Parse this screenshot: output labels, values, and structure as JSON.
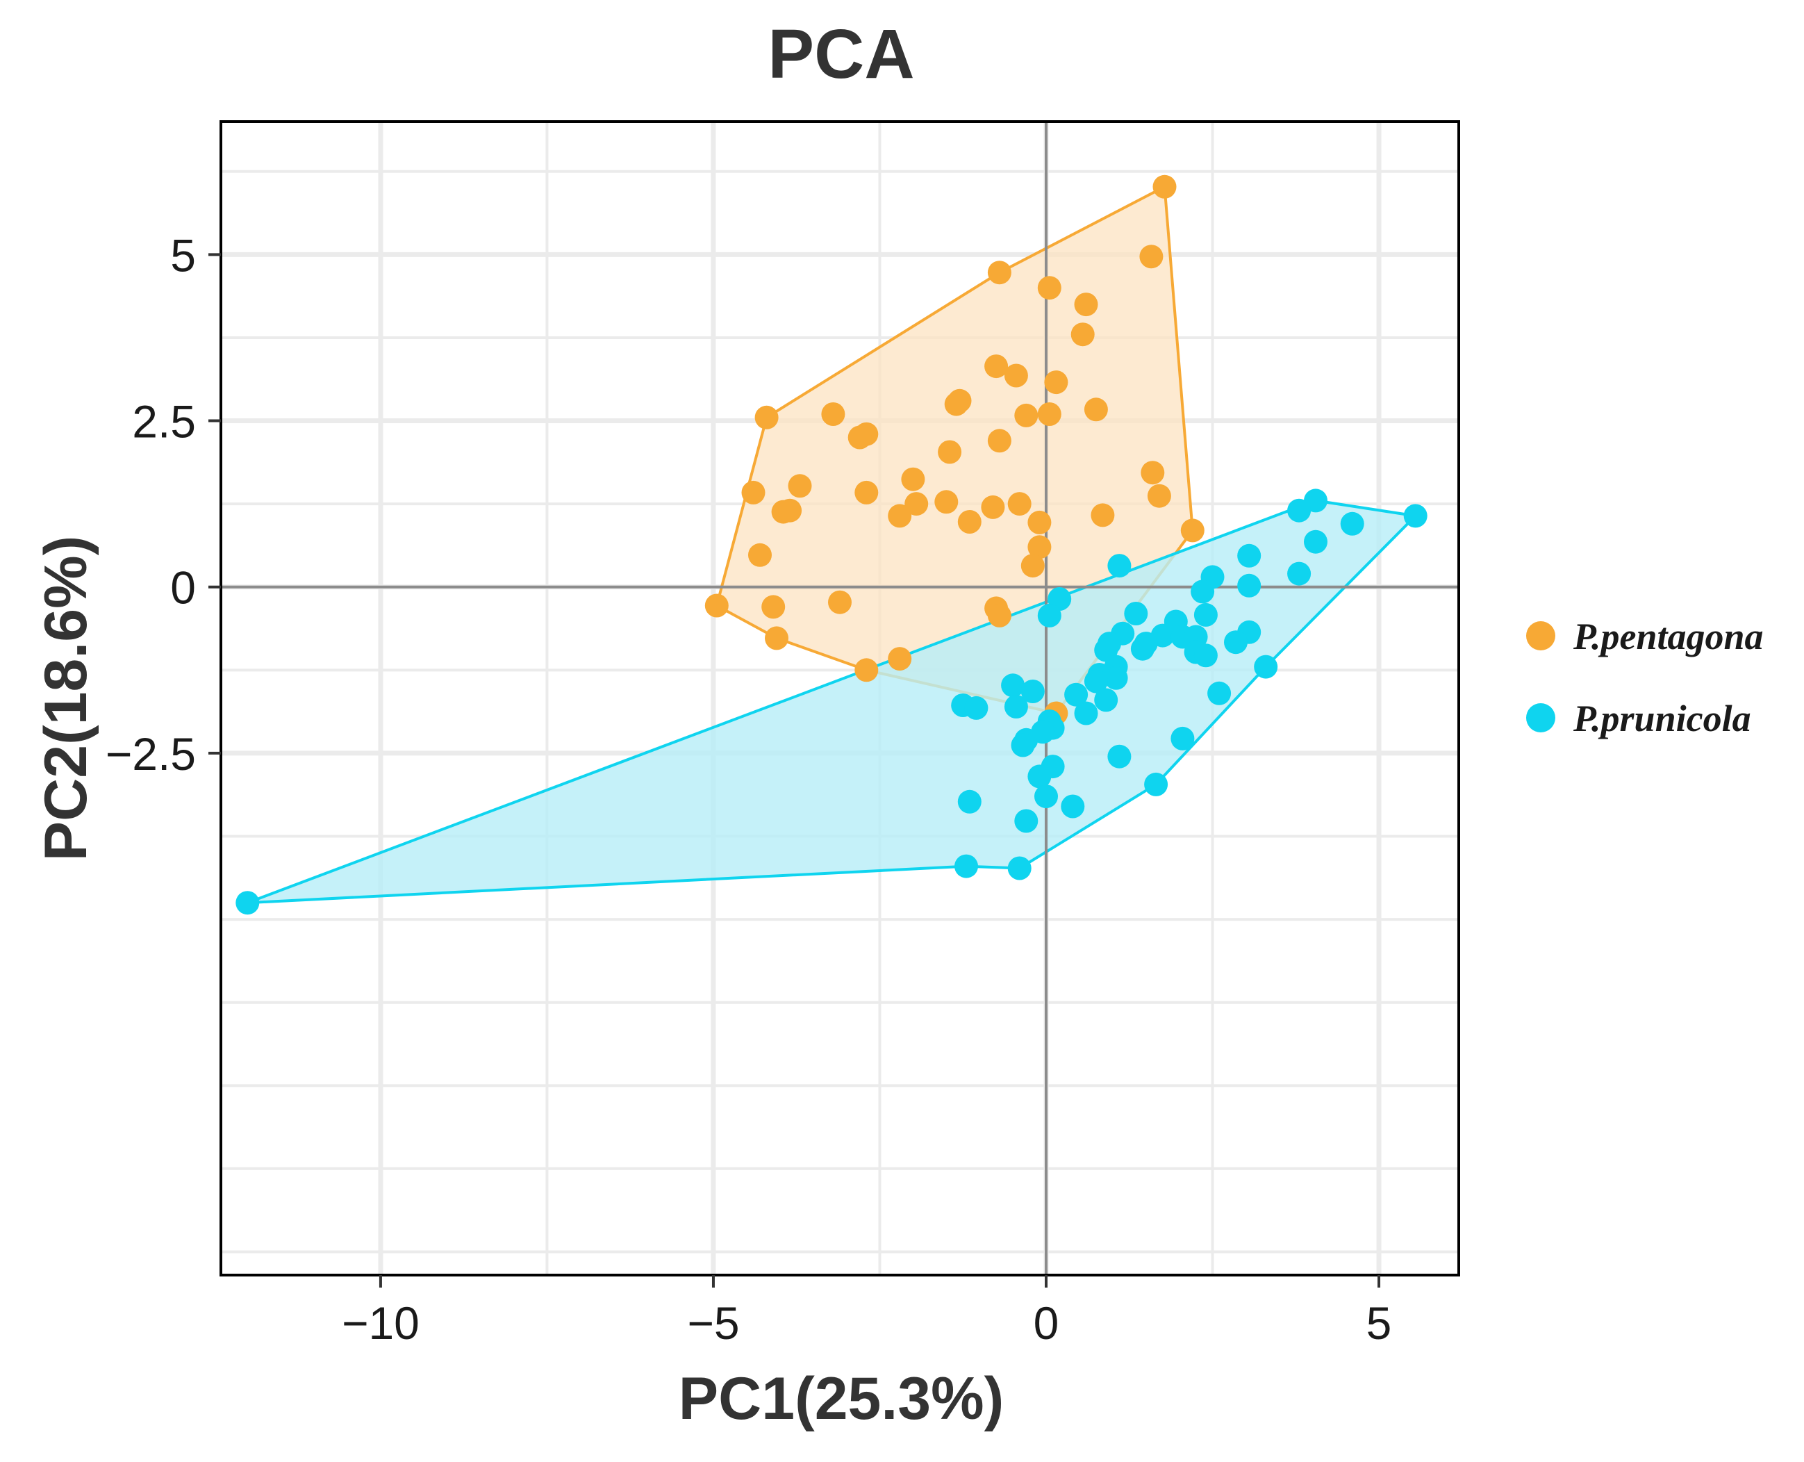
{
  "chart_data": {
    "type": "scatter",
    "title": "PCA",
    "xlabel": "PC1(25.3%)",
    "ylabel": "PC2(18.6%)",
    "xlim": [
      -12.4,
      6.2
    ],
    "ylim": [
      -10.35,
      7.0
    ],
    "x_ticks": [
      {
        "value": -10,
        "label": "−10"
      },
      {
        "value": -5,
        "label": "−5"
      },
      {
        "value": 0,
        "label": "0"
      },
      {
        "value": 5,
        "label": "5"
      }
    ],
    "y_ticks": [
      {
        "value": 5,
        "label": "5"
      },
      {
        "value": 2.5,
        "label": "2.5"
      },
      {
        "value": 0,
        "label": "0"
      },
      {
        "value": -2.5,
        "label": "−2.5"
      }
    ],
    "grid": true,
    "reference_lines": {
      "x": 0,
      "y": 0
    },
    "legend": {
      "position": "right"
    },
    "series": [
      {
        "name": "P.pentagona",
        "color": "#F7A935",
        "hull_fill": "#FCE3C2",
        "hull_opacity": 0.75,
        "points": [
          [
            1.78,
            6.02
          ],
          [
            1.58,
            4.97
          ],
          [
            -0.7,
            4.73
          ],
          [
            0.05,
            4.5
          ],
          [
            0.6,
            4.25
          ],
          [
            0.55,
            3.8
          ],
          [
            -0.75,
            3.32
          ],
          [
            -0.45,
            3.18
          ],
          [
            0.15,
            3.08
          ],
          [
            -1.3,
            2.8
          ],
          [
            -1.35,
            2.75
          ],
          [
            0.75,
            2.67
          ],
          [
            -0.3,
            2.58
          ],
          [
            0.05,
            2.6
          ],
          [
            -4.2,
            2.55
          ],
          [
            -3.2,
            2.6
          ],
          [
            -2.7,
            2.3
          ],
          [
            -2.8,
            2.25
          ],
          [
            -0.7,
            2.2
          ],
          [
            -1.45,
            2.03
          ],
          [
            1.6,
            1.72
          ],
          [
            -2.0,
            1.62
          ],
          [
            -3.7,
            1.52
          ],
          [
            -4.4,
            1.42
          ],
          [
            -2.7,
            1.42
          ],
          [
            1.7,
            1.37
          ],
          [
            -1.5,
            1.28
          ],
          [
            -1.95,
            1.25
          ],
          [
            -0.4,
            1.25
          ],
          [
            -0.8,
            1.2
          ],
          [
            -3.95,
            1.13
          ],
          [
            -3.85,
            1.15
          ],
          [
            -2.2,
            1.07
          ],
          [
            0.85,
            1.08
          ],
          [
            -1.15,
            0.98
          ],
          [
            -0.1,
            0.97
          ],
          [
            2.2,
            0.85
          ],
          [
            -0.1,
            0.6
          ],
          [
            -4.3,
            0.48
          ],
          [
            -0.2,
            0.32
          ],
          [
            -4.95,
            -0.28
          ],
          [
            -4.1,
            -0.3
          ],
          [
            -3.1,
            -0.23
          ],
          [
            -0.75,
            -0.32
          ],
          [
            -0.7,
            -0.43
          ],
          [
            -4.05,
            -0.77
          ],
          [
            -2.2,
            -1.08
          ],
          [
            -2.7,
            -1.25
          ],
          [
            0.15,
            -1.9
          ]
        ],
        "hull": [
          [
            1.78,
            6.02
          ],
          [
            2.2,
            0.85
          ],
          [
            0.15,
            -1.9
          ],
          [
            -2.7,
            -1.25
          ],
          [
            -4.05,
            -0.77
          ],
          [
            -4.95,
            -0.28
          ],
          [
            -4.2,
            2.55
          ],
          [
            -0.7,
            4.73
          ]
        ]
      },
      {
        "name": "P.prunicola",
        "color": "#0FD4EF",
        "hull_fill": "#B6EEF8",
        "hull_opacity": 0.8,
        "points": [
          [
            5.55,
            1.07
          ],
          [
            4.05,
            1.3
          ],
          [
            3.8,
            1.15
          ],
          [
            4.6,
            0.95
          ],
          [
            4.05,
            0.68
          ],
          [
            3.05,
            0.47
          ],
          [
            1.1,
            0.32
          ],
          [
            2.5,
            0.15
          ],
          [
            3.8,
            0.2
          ],
          [
            2.35,
            -0.07
          ],
          [
            3.05,
            0.02
          ],
          [
            0.2,
            -0.18
          ],
          [
            0.05,
            -0.43
          ],
          [
            1.35,
            -0.4
          ],
          [
            2.4,
            -0.42
          ],
          [
            1.95,
            -0.52
          ],
          [
            3.05,
            -0.68
          ],
          [
            1.15,
            -0.7
          ],
          [
            1.75,
            -0.73
          ],
          [
            2.05,
            -0.75
          ],
          [
            2.25,
            -0.75
          ],
          [
            2.85,
            -0.83
          ],
          [
            0.95,
            -0.85
          ],
          [
            1.5,
            -0.85
          ],
          [
            1.45,
            -0.93
          ],
          [
            0.9,
            -0.95
          ],
          [
            2.25,
            -0.98
          ],
          [
            2.4,
            -1.03
          ],
          [
            1.05,
            -1.2
          ],
          [
            3.3,
            -1.2
          ],
          [
            0.8,
            -1.32
          ],
          [
            1.05,
            -1.37
          ],
          [
            0.75,
            -1.42
          ],
          [
            -0.5,
            -1.48
          ],
          [
            -0.2,
            -1.57
          ],
          [
            0.45,
            -1.62
          ],
          [
            2.6,
            -1.6
          ],
          [
            0.9,
            -1.7
          ],
          [
            -1.25,
            -1.78
          ],
          [
            -1.05,
            -1.82
          ],
          [
            -0.45,
            -1.8
          ],
          [
            0.6,
            -1.9
          ],
          [
            0.05,
            -2.02
          ],
          [
            0.1,
            -2.12
          ],
          [
            -0.05,
            -2.18
          ],
          [
            2.05,
            -2.28
          ],
          [
            -0.3,
            -2.3
          ],
          [
            -0.35,
            -2.38
          ],
          [
            1.1,
            -2.55
          ],
          [
            0.1,
            -2.7
          ],
          [
            -0.1,
            -2.85
          ],
          [
            1.65,
            -2.97
          ],
          [
            0.0,
            -3.15
          ],
          [
            -1.15,
            -3.23
          ],
          [
            0.4,
            -3.3
          ],
          [
            -0.3,
            -3.52
          ],
          [
            -1.2,
            -4.2
          ],
          [
            -0.4,
            -4.23
          ],
          [
            -12.0,
            -4.75
          ]
        ],
        "hull": [
          [
            5.55,
            1.07
          ],
          [
            4.05,
            1.3
          ],
          [
            -12.0,
            -4.75
          ],
          [
            -1.2,
            -4.2
          ],
          [
            -0.4,
            -4.23
          ],
          [
            1.65,
            -2.97
          ],
          [
            3.3,
            -1.2
          ]
        ]
      }
    ]
  }
}
